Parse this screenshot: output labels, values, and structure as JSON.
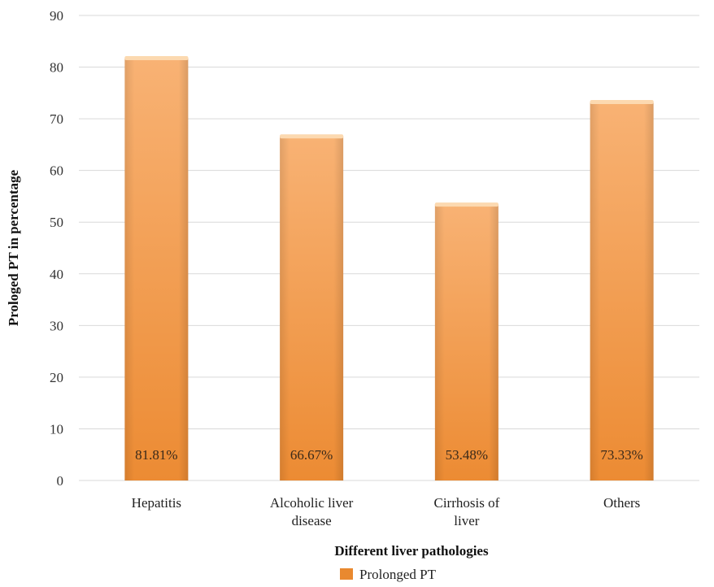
{
  "chart_data": {
    "type": "bar",
    "categories": [
      [
        "Hepatitis"
      ],
      [
        "Alcoholic liver",
        "disease"
      ],
      [
        "Cirrhosis of",
        "liver"
      ],
      [
        "Others"
      ]
    ],
    "series": [
      {
        "name": "Prolonged PT",
        "values": [
          81.81,
          66.67,
          53.48,
          73.33
        ],
        "labels": [
          "81.81%",
          "66.67%",
          "53.48%",
          "73.33%"
        ]
      }
    ],
    "xlabel": "Different liver pathologies",
    "ylabel": "Prologed PT in percentage",
    "ylim": [
      0,
      90
    ],
    "yticks": [
      0,
      10,
      20,
      30,
      40,
      50,
      60,
      70,
      80,
      90
    ],
    "grid": true,
    "legend": "bottom",
    "colors": {
      "bar_light": "#f7ad6a",
      "bar_dark": "#e9892f",
      "bar_top": "#fcd9b0",
      "grid": "#d9d9d9"
    }
  }
}
